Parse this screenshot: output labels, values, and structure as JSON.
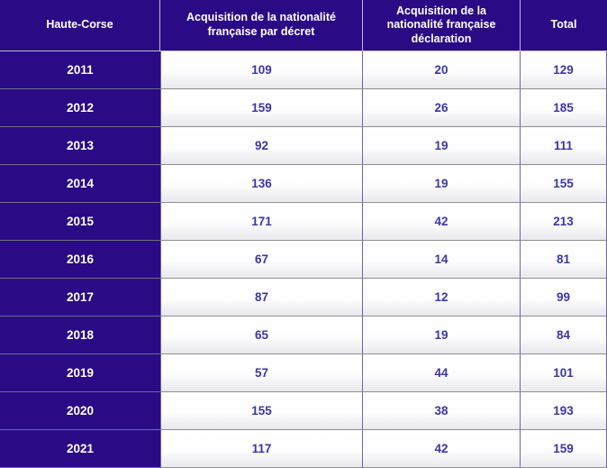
{
  "table": {
    "title": "Haute-Corse",
    "headers": {
      "region": "Haute-Corse",
      "decree": "Acquisition de la nationalité française par décret",
      "declaration": "Acquisition de la nationalité française déclaration",
      "total": "Total"
    },
    "rows": [
      {
        "year": "2011",
        "decree": "109",
        "declaration": "20",
        "total": "129"
      },
      {
        "year": "2012",
        "decree": "159",
        "declaration": "26",
        "total": "185"
      },
      {
        "year": "2013",
        "decree": "92",
        "declaration": "19",
        "total": "111"
      },
      {
        "year": "2014",
        "decree": "136",
        "declaration": "19",
        "total": "155"
      },
      {
        "year": "2015",
        "decree": "171",
        "declaration": "42",
        "total": "213"
      },
      {
        "year": "2016",
        "decree": "67",
        "declaration": "14",
        "total": "81"
      },
      {
        "year": "2017",
        "decree": "87",
        "declaration": "12",
        "total": "99"
      },
      {
        "year": "2018",
        "decree": "65",
        "declaration": "19",
        "total": "84"
      },
      {
        "year": "2019",
        "decree": "57",
        "declaration": "44",
        "total": "101"
      },
      {
        "year": "2020",
        "decree": "155",
        "declaration": "38",
        "total": "193"
      },
      {
        "year": "2021",
        "decree": "117",
        "declaration": "42",
        "total": "159"
      }
    ]
  },
  "colors": {
    "header_bg": "#2a0a85",
    "value_text": "#3b35a7",
    "row_line": "#8f8f93",
    "col_line": "#6e63a8"
  },
  "chart_data": {
    "type": "table",
    "title": "Haute-Corse",
    "columns": [
      "Haute-Corse",
      "Acquisition de la nationalité française par décret",
      "Acquisition de la nationalité française déclaration",
      "Total"
    ],
    "rows": [
      [
        "2011",
        109,
        20,
        129
      ],
      [
        "2012",
        159,
        26,
        185
      ],
      [
        "2013",
        92,
        19,
        111
      ],
      [
        "2014",
        136,
        19,
        155
      ],
      [
        "2015",
        171,
        42,
        213
      ],
      [
        "2016",
        67,
        14,
        81
      ],
      [
        "2017",
        87,
        12,
        99
      ],
      [
        "2018",
        65,
        19,
        84
      ],
      [
        "2019",
        57,
        44,
        101
      ],
      [
        "2020",
        155,
        38,
        193
      ],
      [
        "2021",
        117,
        42,
        159
      ]
    ]
  }
}
